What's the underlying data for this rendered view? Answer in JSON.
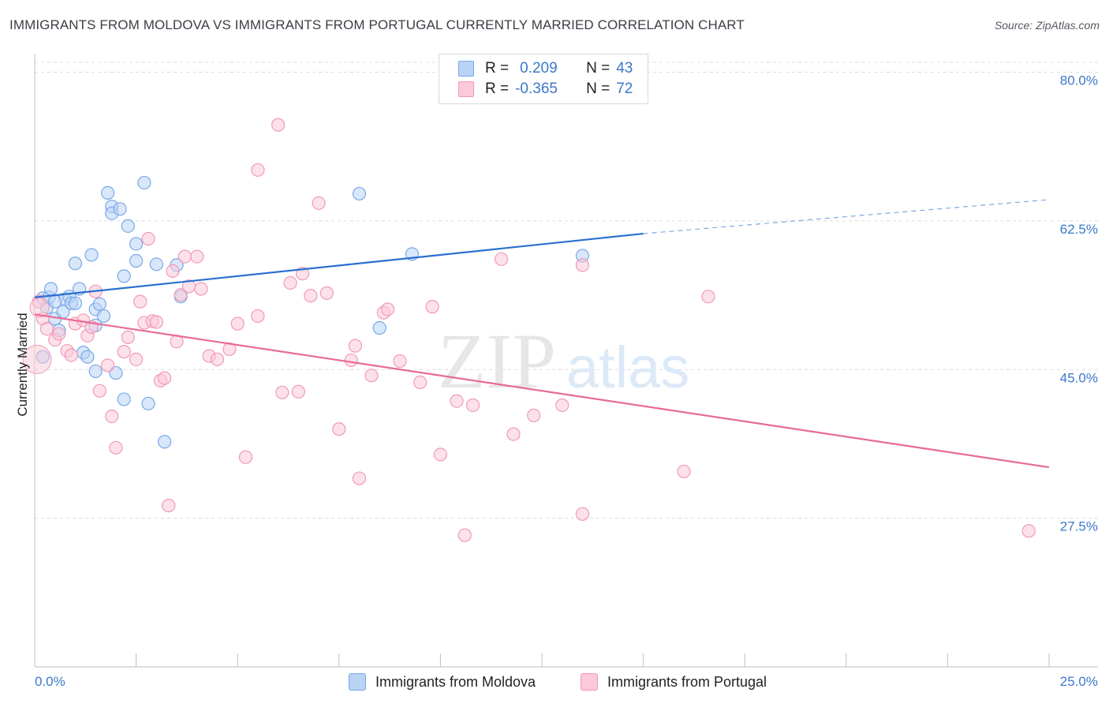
{
  "title": "IMMIGRANTS FROM MOLDOVA VS IMMIGRANTS FROM PORTUGAL CURRENTLY MARRIED CORRELATION CHART",
  "source": "Source: ZipAtlas.com",
  "watermark": {
    "zip": "ZIP",
    "atlas": "atlas"
  },
  "legend": {
    "r_label": "R =",
    "n_label": "N =",
    "series": [
      {
        "name": "Immigrants from Moldova",
        "r": "0.209",
        "n": "43",
        "fill": "#b9d3f5",
        "stroke": "#7aa8e6",
        "line": "#2a6fd0"
      },
      {
        "name": "Immigrants from Portugal",
        "r": "-0.365",
        "n": "72",
        "fill": "#fbc9d8",
        "stroke": "#f09ab6",
        "line": "#e8699a"
      }
    ]
  },
  "chart_data": {
    "type": "scatter",
    "title": "IMMIGRANTS FROM MOLDOVA VS IMMIGRANTS FROM PORTUGAL CURRENTLY MARRIED CORRELATION CHART",
    "xlabel": "",
    "ylabel": "Currently Married",
    "xlim": [
      0,
      25
    ],
    "ylim": [
      10,
      82
    ],
    "x_tick_labels": [
      "0.0%",
      "25.0%"
    ],
    "y_ticks": [
      {
        "value": 80.0,
        "label": "80.0%"
      },
      {
        "value": 62.5,
        "label": "62.5%"
      },
      {
        "value": 45.0,
        "label": "45.0%"
      },
      {
        "value": 27.5,
        "label": "27.5%"
      }
    ],
    "series": [
      {
        "name": "Immigrants from Moldova",
        "points": [
          [
            0.2,
            53.4
          ],
          [
            0.3,
            52.3
          ],
          [
            0.35,
            53.5
          ],
          [
            0.4,
            54.5
          ],
          [
            0.5,
            51.0
          ],
          [
            0.6,
            49.6
          ],
          [
            0.7,
            51.8
          ],
          [
            0.75,
            53.3
          ],
          [
            0.85,
            53.6
          ],
          [
            0.9,
            52.8
          ],
          [
            1.0,
            57.5
          ],
          [
            1.1,
            54.5
          ],
          [
            1.2,
            47.0
          ],
          [
            1.3,
            46.5
          ],
          [
            1.4,
            58.5
          ],
          [
            1.5,
            44.8
          ],
          [
            1.5,
            52.1
          ],
          [
            1.6,
            52.7
          ],
          [
            1.7,
            51.3
          ],
          [
            1.8,
            65.8
          ],
          [
            1.9,
            64.2
          ],
          [
            1.9,
            63.4
          ],
          [
            2.0,
            44.6
          ],
          [
            2.1,
            63.9
          ],
          [
            2.2,
            56.0
          ],
          [
            2.3,
            61.9
          ],
          [
            2.2,
            41.5
          ],
          [
            2.5,
            59.8
          ],
          [
            2.5,
            57.8
          ],
          [
            2.7,
            67.0
          ],
          [
            2.8,
            41.0
          ],
          [
            3.0,
            57.4
          ],
          [
            3.5,
            57.3
          ],
          [
            3.6,
            53.6
          ],
          [
            8.0,
            65.7
          ],
          [
            8.5,
            49.9
          ],
          [
            9.3,
            58.6
          ],
          [
            13.5,
            58.4
          ],
          [
            0.2,
            46.5
          ],
          [
            0.5,
            53.0
          ],
          [
            1.0,
            52.8
          ],
          [
            1.5,
            50.2
          ],
          [
            3.2,
            36.5
          ]
        ],
        "trend": {
          "x0": 0,
          "y0": 53.5,
          "x1": 15,
          "y1": 61.0,
          "dash_to_x": 25,
          "dash_to_y": 65.0
        }
      },
      {
        "name": "Immigrants from Portugal",
        "points": [
          [
            0.1,
            53.0
          ],
          [
            0.2,
            51.0
          ],
          [
            0.3,
            49.8
          ],
          [
            0.5,
            48.5
          ],
          [
            0.6,
            49.2
          ],
          [
            0.8,
            47.2
          ],
          [
            0.9,
            46.7
          ],
          [
            1.0,
            50.4
          ],
          [
            1.2,
            50.8
          ],
          [
            1.3,
            49.0
          ],
          [
            1.4,
            50.0
          ],
          [
            1.5,
            54.2
          ],
          [
            1.6,
            42.5
          ],
          [
            1.8,
            45.5
          ],
          [
            1.9,
            39.5
          ],
          [
            2.0,
            35.8
          ],
          [
            2.2,
            47.1
          ],
          [
            2.3,
            48.8
          ],
          [
            2.5,
            46.2
          ],
          [
            2.6,
            53.0
          ],
          [
            2.7,
            50.5
          ],
          [
            2.8,
            60.4
          ],
          [
            2.9,
            50.7
          ],
          [
            3.0,
            50.6
          ],
          [
            3.1,
            43.7
          ],
          [
            3.2,
            44.0
          ],
          [
            3.3,
            29.0
          ],
          [
            3.4,
            56.6
          ],
          [
            3.5,
            48.3
          ],
          [
            3.6,
            53.8
          ],
          [
            3.7,
            58.3
          ],
          [
            3.8,
            54.8
          ],
          [
            4.0,
            58.3
          ],
          [
            4.1,
            54.5
          ],
          [
            4.3,
            46.6
          ],
          [
            4.5,
            46.2
          ],
          [
            4.8,
            47.4
          ],
          [
            5.0,
            50.4
          ],
          [
            5.2,
            34.7
          ],
          [
            5.5,
            51.3
          ],
          [
            5.5,
            68.5
          ],
          [
            6.0,
            73.8
          ],
          [
            6.1,
            42.3
          ],
          [
            6.3,
            55.2
          ],
          [
            6.5,
            42.4
          ],
          [
            6.6,
            56.3
          ],
          [
            6.8,
            53.7
          ],
          [
            7.0,
            64.6
          ],
          [
            7.2,
            54.0
          ],
          [
            7.5,
            38.0
          ],
          [
            7.8,
            46.1
          ],
          [
            7.9,
            47.8
          ],
          [
            8.0,
            32.2
          ],
          [
            8.3,
            44.3
          ],
          [
            8.6,
            51.7
          ],
          [
            8.7,
            52.1
          ],
          [
            9.0,
            46.0
          ],
          [
            9.5,
            43.5
          ],
          [
            9.8,
            52.4
          ],
          [
            10.0,
            35.0
          ],
          [
            10.4,
            41.3
          ],
          [
            10.6,
            25.5
          ],
          [
            10.8,
            40.8
          ],
          [
            11.5,
            58.0
          ],
          [
            11.8,
            37.4
          ],
          [
            12.3,
            39.6
          ],
          [
            13.0,
            40.8
          ],
          [
            13.5,
            28.0
          ],
          [
            13.5,
            57.3
          ],
          [
            16.0,
            33.0
          ],
          [
            16.6,
            53.6
          ],
          [
            24.5,
            26.0
          ]
        ],
        "trend": {
          "x0": 0,
          "y0": 51.5,
          "x1": 25,
          "y1": 33.5
        }
      }
    ]
  }
}
